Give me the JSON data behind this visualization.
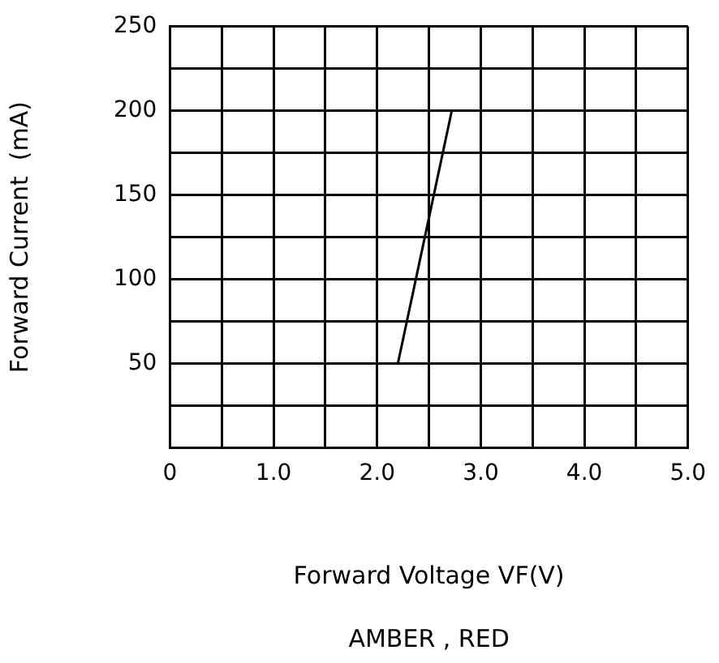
{
  "chart_data": {
    "type": "line",
    "xlabel": "Forward Voltage VF(V)",
    "ylabel": "Forward Current  (mA)",
    "annotations": [
      "AMBER , RED"
    ],
    "x": [
      2.2,
      2.72
    ],
    "series": [
      {
        "color": "#000000",
        "values": [
          50,
          200
        ]
      }
    ],
    "xlim": [
      0,
      5
    ],
    "ylim": [
      0,
      250
    ],
    "xticks": [
      {
        "value": 0,
        "label": "0"
      },
      {
        "value": 0.5,
        "label": null
      },
      {
        "value": 1,
        "label": "1.0"
      },
      {
        "value": 1.5,
        "label": null
      },
      {
        "value": 2,
        "label": "2.0"
      },
      {
        "value": 2.5,
        "label": null
      },
      {
        "value": 3,
        "label": "3.0"
      },
      {
        "value": 3.5,
        "label": null
      },
      {
        "value": 4,
        "label": "4.0"
      },
      {
        "value": 4.5,
        "label": null
      },
      {
        "value": 5,
        "label": "5.0"
      }
    ],
    "yticks": [
      {
        "value": 0,
        "label": null
      },
      {
        "value": 25,
        "label": null
      },
      {
        "value": 50,
        "label": "50"
      },
      {
        "value": 75,
        "label": null
      },
      {
        "value": 100,
        "label": "100"
      },
      {
        "value": 125,
        "label": null
      },
      {
        "value": 150,
        "label": "150"
      },
      {
        "value": 175,
        "label": null
      },
      {
        "value": 200,
        "label": "200"
      },
      {
        "value": 225,
        "label": null
      },
      {
        "value": 250,
        "label": "250"
      }
    ],
    "grid": true,
    "marker": "none",
    "line_style": "solid",
    "legend": false
  }
}
